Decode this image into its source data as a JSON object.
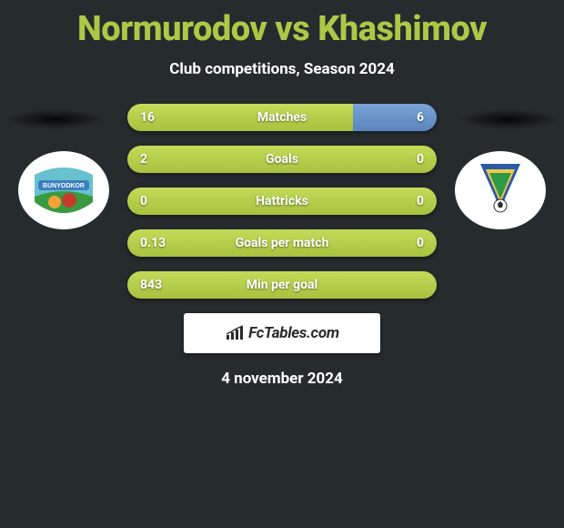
{
  "background_color": "#262b2e",
  "title": {
    "text": "Normurodov vs Khashimov",
    "color": "#acc846",
    "fontsize": 38,
    "fontweight": 800
  },
  "subtitle": {
    "text": "Club competitions, Season 2024",
    "color": "#ffffff",
    "fontsize": 17,
    "fontweight": 700
  },
  "date": {
    "text": "4 november 2024",
    "color": "#ffffff",
    "fontsize": 17,
    "fontweight": 700
  },
  "brand": {
    "text": "FcTables.com",
    "background_color": "#ffffff",
    "text_color": "#2b2b2b",
    "icon_name": "bar-chart-icon"
  },
  "bar_style": {
    "height": 30,
    "border_radius": 15,
    "left_color_top": "#c3db58",
    "left_color_bottom": "#a7c23f",
    "right_color_top": "#7aa3d6",
    "right_color_bottom": "#5a86bf",
    "value_color": "#ffffff",
    "value_fontsize": 14,
    "value_fontweight": 700,
    "label_color": "#ffffff",
    "label_fontsize": 14,
    "label_fontweight": 700
  },
  "stats": [
    {
      "label": "Matches",
      "left_value": "16",
      "right_value": "6",
      "left_pct": 73,
      "right_pct": 27
    },
    {
      "label": "Goals",
      "left_value": "2",
      "right_value": "0",
      "left_pct": 100,
      "right_pct": 0
    },
    {
      "label": "Hattricks",
      "left_value": "0",
      "right_value": "0",
      "left_pct": 100,
      "right_pct": 0
    },
    {
      "label": "Goals per match",
      "left_value": "0.13",
      "right_value": "0",
      "left_pct": 100,
      "right_pct": 0
    },
    {
      "label": "Min per goal",
      "left_value": "843",
      "right_value": "",
      "left_pct": 100,
      "right_pct": 0
    }
  ],
  "club_left": {
    "name": "BUNYODKOR",
    "badge_bg": "#ffffff",
    "sky": "#68c1cf",
    "field": "#3a9a3f",
    "sun": "#f2a23a",
    "ball_red": "#c63b2e",
    "banner_bg": "#3b7fbf",
    "banner_text_color": "#ffffff"
  },
  "club_right": {
    "name": "club-right",
    "badge_bg": "#ffffff",
    "v_blue": "#2b5aa6",
    "v_green": "#2e9a46",
    "v_yellow": "#f2c84b",
    "ball_color": "#2b2b2b"
  }
}
